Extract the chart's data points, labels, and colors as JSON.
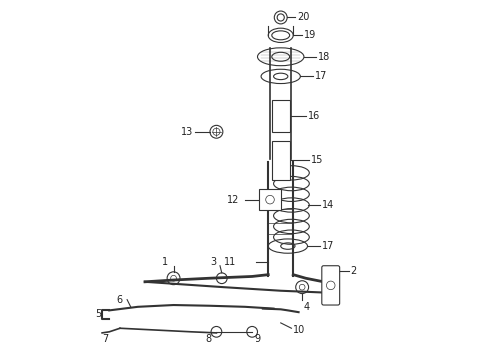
{
  "background_color": "#ffffff",
  "line_color": "#333333",
  "text_color": "#222222",
  "font_size": 7,
  "fig_width": 4.9,
  "fig_height": 3.6,
  "dpi": 100
}
